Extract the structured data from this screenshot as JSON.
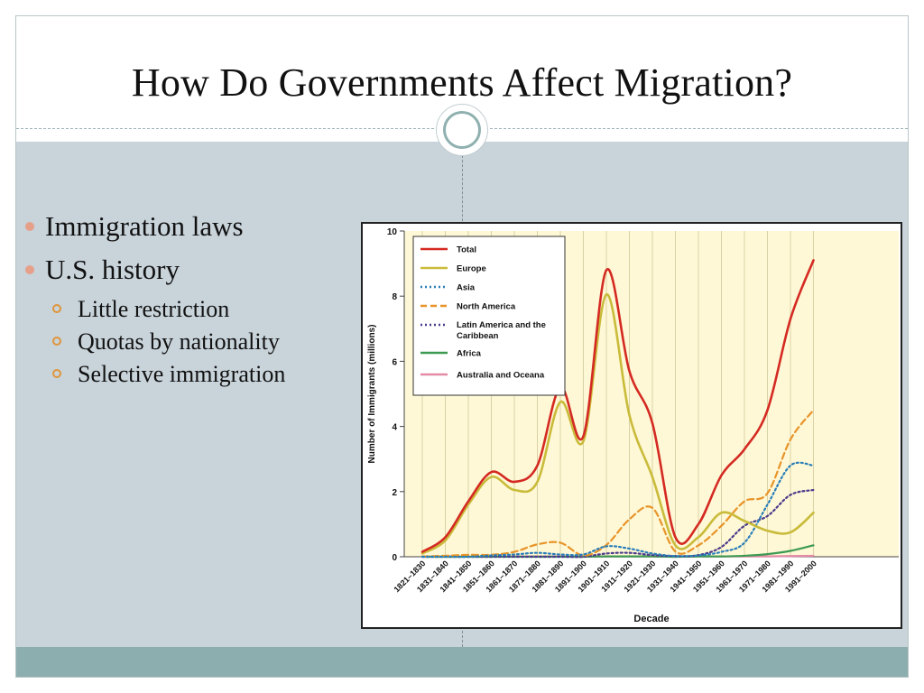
{
  "slide": {
    "title": "How Do Governments Affect Migration?"
  },
  "bullets": [
    {
      "label": "Immigration laws",
      "level": 1
    },
    {
      "label": "U.S. history",
      "level": 1
    },
    {
      "label": "Little restriction",
      "level": 2
    },
    {
      "label": "Quotas by nationality",
      "level": 2
    },
    {
      "label": "Selective immigration",
      "level": 2
    }
  ],
  "colors": {
    "content_bg": "#c8d3da",
    "bottom_band": "#8daeae",
    "bullet_l1": "#e6a08a",
    "bullet_l2": "#e0953a",
    "plot_bg": "#fff8d6"
  },
  "chart_data": {
    "type": "line",
    "xlabel": "Decade",
    "ylabel": "Number of Immigrants (millions)",
    "ylim": [
      0,
      10
    ],
    "yticks": [
      "0",
      "2",
      "4",
      "6",
      "8",
      "10"
    ],
    "grid": "vertical",
    "legend_position": "top-left",
    "categories": [
      "1821–1830",
      "1831–1840",
      "1841–1850",
      "1851–1860",
      "1861–1870",
      "1871–1880",
      "1881–1890",
      "1891–1900",
      "1901–1910",
      "1911–1920",
      "1921–1930",
      "1931–1940",
      "1941–1950",
      "1951–1960",
      "1961–1970",
      "1971–1980",
      "1981–1990",
      "1991–2000"
    ],
    "series": [
      {
        "name": "Total",
        "color": "#d42a22",
        "style": "solid",
        "values": [
          0.15,
          0.6,
          1.7,
          2.6,
          2.3,
          2.8,
          5.2,
          3.7,
          8.8,
          5.7,
          4.1,
          0.6,
          1.0,
          2.5,
          3.3,
          4.5,
          7.3,
          9.1
        ]
      },
      {
        "name": "Europe",
        "color": "#c9bb3a",
        "style": "solid",
        "values": [
          0.1,
          0.5,
          1.6,
          2.45,
          2.05,
          2.3,
          4.75,
          3.55,
          8.05,
          4.35,
          2.45,
          0.35,
          0.6,
          1.35,
          1.1,
          0.8,
          0.75,
          1.35
        ]
      },
      {
        "name": "Asia",
        "color": "#2a7fb8",
        "style": "dotted",
        "values": [
          0.0,
          0.0,
          0.0,
          0.04,
          0.07,
          0.12,
          0.07,
          0.07,
          0.32,
          0.25,
          0.1,
          0.02,
          0.04,
          0.15,
          0.43,
          1.6,
          2.8,
          2.8
        ]
      },
      {
        "name": "North America",
        "color": "#e8942a",
        "style": "dashed",
        "values": [
          0.01,
          0.03,
          0.06,
          0.06,
          0.15,
          0.38,
          0.43,
          0.04,
          0.36,
          1.15,
          1.5,
          0.16,
          0.35,
          0.95,
          1.7,
          1.95,
          3.6,
          4.5
        ]
      },
      {
        "name": "Latin America and the Caribbean",
        "color": "#4a3a8c",
        "style": "dotted",
        "values": [
          0.0,
          0.0,
          0.0,
          0.0,
          0.0,
          0.0,
          0.0,
          0.0,
          0.1,
          0.12,
          0.05,
          0.02,
          0.05,
          0.3,
          0.95,
          1.25,
          1.9,
          2.05
        ]
      },
      {
        "name": "Africa",
        "color": "#3d9a52",
        "style": "solid",
        "values": [
          0.0,
          0.0,
          0.0,
          0.0,
          0.0,
          0.0,
          0.0,
          0.0,
          0.01,
          0.01,
          0.01,
          0.0,
          0.01,
          0.01,
          0.03,
          0.08,
          0.18,
          0.35
        ]
      },
      {
        "name": "Australia and Oceana",
        "color": "#e48aa6",
        "style": "solid",
        "values": [
          0.0,
          0.0,
          0.0,
          0.0,
          0.01,
          0.01,
          0.01,
          0.0,
          0.01,
          0.01,
          0.01,
          0.0,
          0.01,
          0.01,
          0.01,
          0.01,
          0.02,
          0.03
        ]
      }
    ]
  }
}
